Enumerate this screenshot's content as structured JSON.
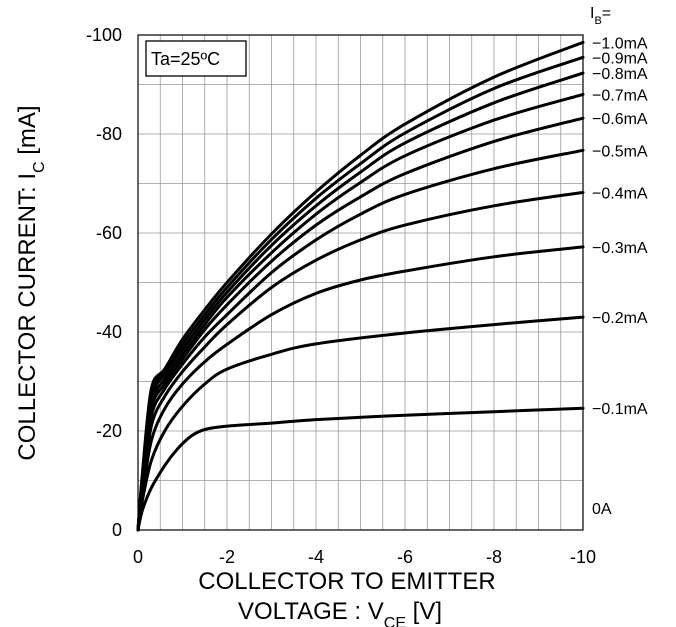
{
  "chart_data": {
    "type": "line",
    "x_ticks": [
      "0",
      "-2",
      "-4",
      "-6",
      "-8",
      "-10"
    ],
    "y_ticks": [
      "0",
      "-20",
      "-40",
      "-60",
      "-80",
      "-100"
    ],
    "xlim": [
      0,
      -10
    ],
    "ylim": [
      0,
      -100
    ],
    "grid": true,
    "xlabel_line1": "COLLECTOR TO EMITTER",
    "xlabel_line2_prefix": "VOLTAGE : V",
    "xlabel_line2_sub": "CE",
    "xlabel_line2_suffix": " [V]",
    "ylabel_prefix": "COLLECTOR CURRENT: I",
    "ylabel_sub": "C",
    "ylabel_suffix": " [mA]",
    "annotation": "Ta=25ºC",
    "label_header_prefix": "I",
    "label_header_sub": "B",
    "label_header_suffix": "=",
    "series": [
      {
        "name": "0A",
        "label": "0A",
        "x": [
          0,
          -10
        ],
        "y": [
          0,
          0
        ]
      },
      {
        "name": "−0.1mA",
        "label": "−0.1mA",
        "x": [
          0,
          -0.1,
          -0.3,
          -0.6,
          -0.9,
          -1.2,
          -1.5,
          -2,
          -3,
          -4,
          -6,
          -8,
          -10
        ],
        "y": [
          0,
          -4,
          -8.5,
          -13,
          -16.5,
          -19,
          -20.3,
          -21,
          -21.6,
          -22.3,
          -23.2,
          -23.9,
          -24.6
        ]
      },
      {
        "name": "−0.2mA",
        "label": "−0.2mA",
        "x": [
          0,
          -0.1,
          -0.3,
          -0.6,
          -1,
          -1.5,
          -2,
          -3,
          -4,
          -6,
          -8,
          -10
        ],
        "y": [
          0,
          -6,
          -14,
          -20,
          -25,
          -29.5,
          -32.5,
          -35.5,
          -37.6,
          -39.8,
          -41.5,
          -43
        ]
      },
      {
        "name": "−0.3mA",
        "label": "−0.3mA",
        "x": [
          0,
          -0.1,
          -0.3,
          -0.6,
          -1,
          -1.5,
          -2,
          -3,
          -4,
          -5,
          -6,
          -8,
          -10
        ],
        "y": [
          0,
          -7,
          -18,
          -24.5,
          -29.5,
          -34,
          -37.5,
          -43.5,
          -47.8,
          -50.5,
          -52.3,
          -55.2,
          -57.2
        ]
      },
      {
        "name": "−0.4mA",
        "label": "−0.4mA",
        "x": [
          0,
          -0.1,
          -0.3,
          -0.6,
          -1,
          -1.5,
          -2,
          -3,
          -4,
          -5,
          -6,
          -8,
          -10
        ],
        "y": [
          0,
          -8,
          -21,
          -27,
          -32,
          -37,
          -41.5,
          -49,
          -54.5,
          -58.6,
          -61.6,
          -65.5,
          -68.2
        ]
      },
      {
        "name": "−0.5mA",
        "label": "−0.5mA",
        "x": [
          0,
          -0.1,
          -0.3,
          -0.6,
          -1,
          -1.5,
          -2,
          -3,
          -4,
          -5,
          -6,
          -8,
          -10
        ],
        "y": [
          0,
          -9,
          -23,
          -28.5,
          -33.5,
          -39,
          -43.5,
          -52,
          -58.6,
          -63.8,
          -67.8,
          -73,
          -76.7
        ]
      },
      {
        "name": "−0.6mA",
        "label": "−0.6mA",
        "x": [
          0,
          -0.1,
          -0.3,
          -0.6,
          -1,
          -1.5,
          -2,
          -3,
          -4,
          -5,
          -6,
          -8,
          -10
        ],
        "y": [
          0,
          -9.5,
          -24.5,
          -29.5,
          -34.5,
          -40.5,
          -45.5,
          -54.3,
          -61.6,
          -67.3,
          -72,
          -78.5,
          -83.2
        ]
      },
      {
        "name": "−0.7mA",
        "label": "−0.7mA",
        "x": [
          0,
          -0.1,
          -0.3,
          -0.6,
          -1,
          -1.5,
          -2,
          -3,
          -4,
          -5,
          -6,
          -8,
          -10
        ],
        "y": [
          0,
          -10,
          -25.5,
          -30.5,
          -35.5,
          -41.5,
          -47,
          -56,
          -63.8,
          -70.2,
          -75.6,
          -82.8,
          -88
        ]
      },
      {
        "name": "−0.8mA",
        "label": "−0.8mA",
        "x": [
          0,
          -0.1,
          -0.3,
          -0.6,
          -1,
          -1.5,
          -2,
          -3,
          -4,
          -5,
          -6,
          -8,
          -10
        ],
        "y": [
          0,
          -10.5,
          -26.5,
          -31.5,
          -36.5,
          -42.5,
          -48,
          -57.5,
          -65.5,
          -72.3,
          -78.2,
          -86.3,
          -92.3
        ]
      },
      {
        "name": "−0.9mA",
        "label": "−0.9mA",
        "x": [
          0,
          -0.1,
          -0.3,
          -0.6,
          -1,
          -1.5,
          -2,
          -3,
          -4,
          -5,
          -6,
          -8,
          -10
        ],
        "y": [
          0,
          -11,
          -27.5,
          -32,
          -37.5,
          -43.5,
          -49,
          -58.7,
          -67,
          -74,
          -80.2,
          -89.2,
          -95.5
        ]
      },
      {
        "name": "−1.0mA",
        "label": "−1.0mA",
        "x": [
          0,
          -0.1,
          -0.3,
          -0.6,
          -1,
          -1.5,
          -2,
          -3,
          -4,
          -5,
          -6,
          -8,
          -10
        ],
        "y": [
          0,
          -11.5,
          -28.5,
          -32.5,
          -38.5,
          -44.5,
          -50,
          -59.8,
          -68.3,
          -75.7,
          -82,
          -91.5,
          -98.5
        ]
      }
    ]
  }
}
